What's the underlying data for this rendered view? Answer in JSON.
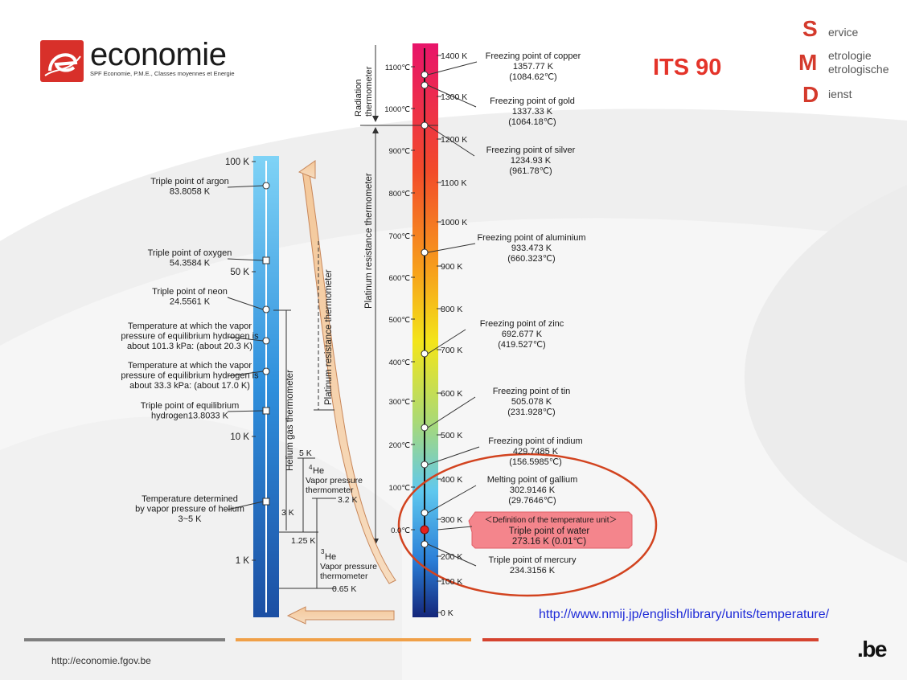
{
  "logo": {
    "word": "economie",
    "subtitle": "SPF Economie, P.M.E., Classes moyennes et Energie"
  },
  "slide_title": "ITS 90",
  "smd": [
    {
      "letter": "S",
      "words": [
        "ervice"
      ]
    },
    {
      "letter": "M",
      "words": [
        "etrologie",
        "etrologische"
      ]
    },
    {
      "letter": "D",
      "words": [
        "ienst"
      ]
    }
  ],
  "source_link": "http://www.nmij.jp/english/library/units/temperature/",
  "footer": {
    "url": "http://economie.fgov.be",
    "be_mark": ".be"
  },
  "colors": {
    "accent": "#e4342a",
    "footer_gray": "#7f7f7f",
    "footer_orange": "#f0a048",
    "footer_red": "#d5432f",
    "callout": "#f4858c"
  },
  "left_scale": {
    "ticks": [
      "100 K",
      "50 K",
      "10 K",
      "1 K"
    ],
    "fixed_points": [
      {
        "lines": [
          "Triple point of argon",
          "83.8058 K"
        ]
      },
      {
        "lines": [
          "Triple point of oxygen",
          "54.3584 K"
        ]
      },
      {
        "lines": [
          "Triple point of neon",
          "24.5561 K"
        ]
      },
      {
        "lines": [
          "Temperature at which the vapor",
          "pressure of equilibrium hydrogen is",
          "about 101.3 kPa: (about 20.3 K)"
        ]
      },
      {
        "lines": [
          "Temperature at which the vapor",
          "pressure of equilibrium hydrogen is",
          "about 33.3 kPa: (about 17.0 K)"
        ]
      },
      {
        "lines": [
          "Triple point of equilibrium",
          "hydrogen13.8033 K"
        ]
      },
      {
        "lines": [
          "Temperature determined",
          "by vapor pressure of helium",
          "3~5 K"
        ]
      }
    ],
    "range_labels": [
      "5 K",
      "3 K",
      "1.25 K",
      "0.65 K",
      "3.2 K"
    ],
    "instruments": {
      "helium_gas": "Helium gas thermometer",
      "platinum_low": "Platinum resistance thermometer",
      "he4_lines": [
        "4",
        "He",
        "Vapor pressure",
        "thermometer"
      ],
      "he3_lines": [
        "3",
        "He",
        "Vapor pressure",
        "thermometer"
      ]
    }
  },
  "right_scale": {
    "kelvin_ticks": [
      "1400 K",
      "1300 K",
      "1200 K",
      "1100 K",
      "1000 K",
      "900 K",
      "800 K",
      "700 K",
      "600 K",
      "500 K",
      "400 K",
      "300 K",
      "200 K",
      "100 K",
      "0 K"
    ],
    "celsius_ticks": [
      "1100℃",
      "1000℃",
      "900℃",
      "800℃",
      "700℃",
      "600℃",
      "500℃",
      "400℃",
      "300℃",
      "200℃",
      "100℃",
      "0.0℃"
    ],
    "fixed_points": [
      {
        "lines": [
          "Freezing point of copper",
          "1357.77 K",
          "(1084.62℃)"
        ]
      },
      {
        "lines": [
          "Freezing point of gold",
          "1337.33 K",
          "(1064.18℃)"
        ]
      },
      {
        "lines": [
          "Freezing point of silver",
          "1234.93 K",
          "(961.78℃)"
        ]
      },
      {
        "lines": [
          "Freezing point of aluminium",
          "933.473 K",
          "(660.323℃)"
        ]
      },
      {
        "lines": [
          "Freezing point of zinc",
          "692.677 K",
          "(419.527℃)"
        ]
      },
      {
        "lines": [
          "Freezing point of tin",
          "505.078 K",
          "(231.928℃)"
        ]
      },
      {
        "lines": [
          "Freezing point of indium",
          "429.7485 K",
          "(156.5985℃)"
        ]
      },
      {
        "lines": [
          "Melting point of gallium",
          "302.9146 K",
          "(29.7646℃)"
        ]
      },
      {
        "lines": [
          "Triple point of mercury",
          "234.3156 K"
        ]
      }
    ],
    "water": {
      "definition": "＜Definition of the temperature unit＞",
      "name": "Triple point of water",
      "value": "273.16 K (0.01℃)"
    },
    "instruments": {
      "radiation": [
        "Radiation",
        "thermometer"
      ],
      "platinum_high": "Platinum resistance thermometer"
    }
  }
}
